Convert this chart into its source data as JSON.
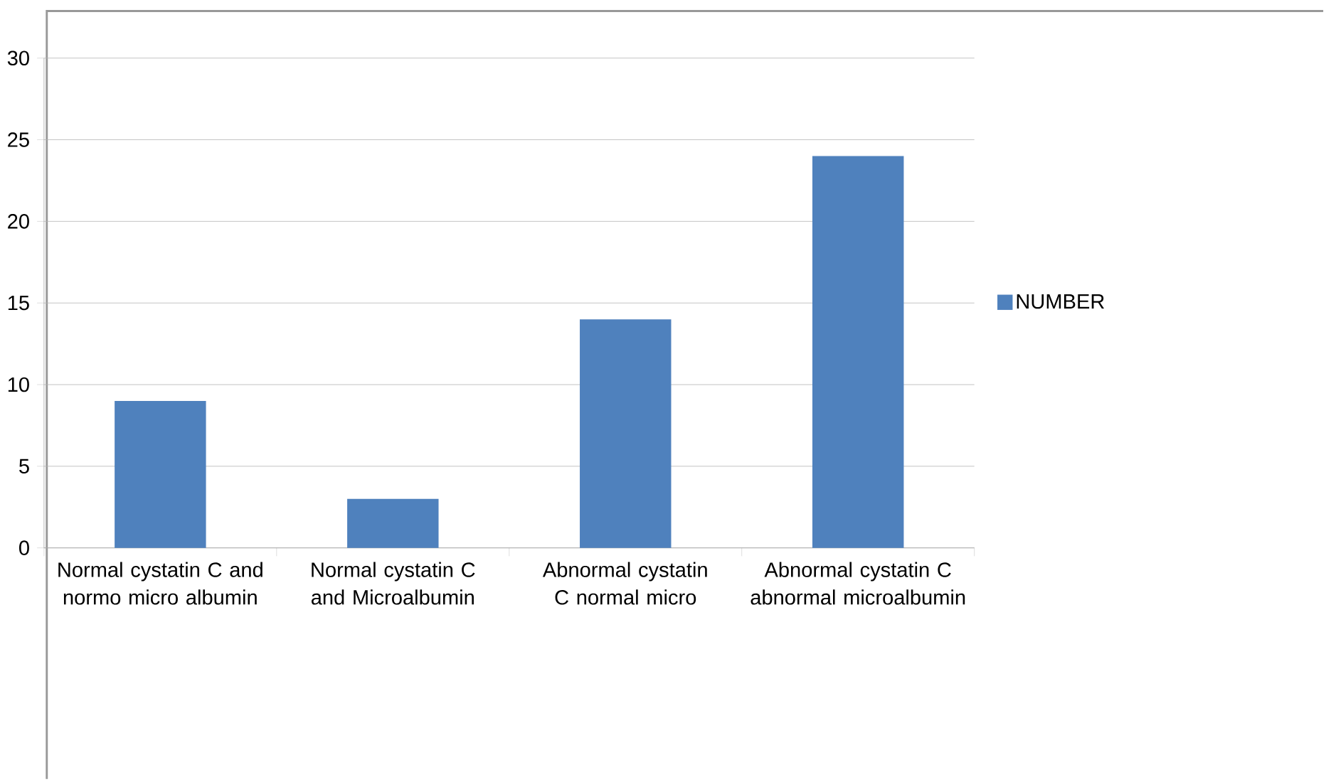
{
  "chart_data": {
    "type": "bar",
    "categories": [
      "Normal cystatin C and normo micro albumin",
      "Normal cystatin C and Microalbumin",
      "Abnormal cystatin C normal micro",
      "Abnormal cystatin C abnormal microalbumin"
    ],
    "series": [
      {
        "name": "NUMBER",
        "color": "#4f81bd",
        "values": [
          9,
          3,
          14,
          24
        ]
      }
    ],
    "ylim": [
      0,
      30
    ],
    "yticks": [
      0,
      5,
      10,
      15,
      20,
      25,
      30
    ],
    "grid": "y",
    "legend": "right"
  }
}
